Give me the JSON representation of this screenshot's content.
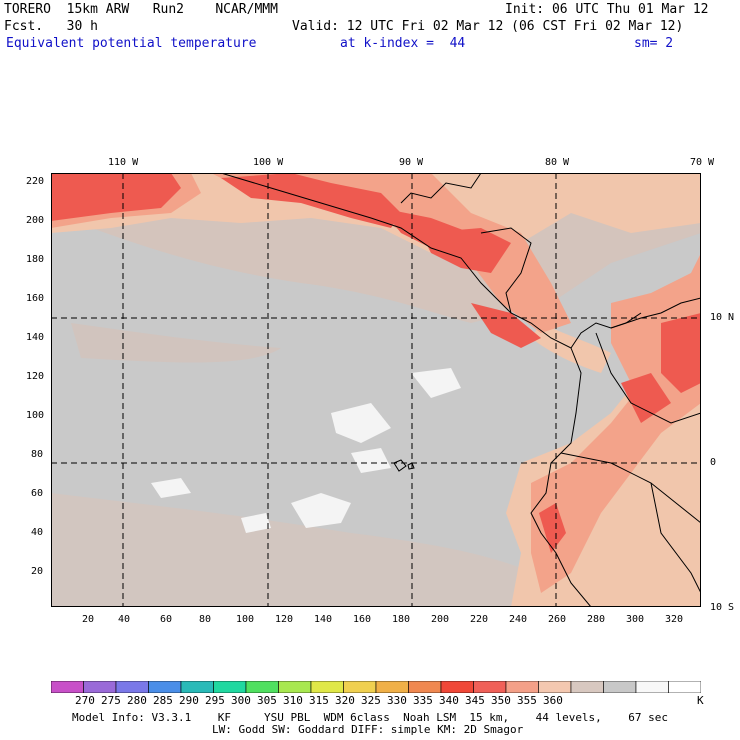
{
  "header": {
    "model": "TORERO  15km ARW   Run2    NCAR/MMM",
    "init": "Init: 06 UTC Thu 01 Mar 12",
    "forecast": "Fcst.   30 h",
    "valid": "Valid: 12 UTC Fri 02 Mar 12 (06 CST Fri 02 Mar 12)",
    "field": "Equivalent potential temperature",
    "level": "at k-index =  44",
    "smoothing": "sm= 2"
  },
  "map": {
    "lon_labels": [
      "110 W",
      "100 W",
      "90 W",
      "80 W",
      "70 W"
    ],
    "lat_labels": [
      "10 N",
      "0",
      "10 S"
    ],
    "y_ticks": [
      "220",
      "200",
      "180",
      "160",
      "140",
      "120",
      "100",
      "80",
      "60",
      "40",
      "20"
    ],
    "x_ticks": [
      "20",
      "40",
      "60",
      "80",
      "100",
      "120",
      "140",
      "160",
      "180",
      "200",
      "220",
      "240",
      "260",
      "280",
      "300",
      "320"
    ]
  },
  "colorbar": {
    "unit": "K",
    "labels": [
      "270",
      "275",
      "280",
      "285",
      "290",
      "295",
      "300",
      "305",
      "310",
      "315",
      "320",
      "325",
      "330",
      "335",
      "340",
      "345",
      "350",
      "355",
      "360"
    ],
    "colors": [
      "#c850c8",
      "#9a6ad8",
      "#7a78e8",
      "#4a8ee8",
      "#2abab8",
      "#20d8a0",
      "#50e060",
      "#a8e850",
      "#e0e848",
      "#f0d050",
      "#f0b048",
      "#f08850",
      "#f04838",
      "#f06058",
      "#f4a088",
      "#f4c8b0",
      "#d8c8c0",
      "#c8c8c8",
      "#f8f8f8",
      "#ffffff"
    ]
  },
  "footer": {
    "line1": "Model Info: V3.3.1    KF     YSU PBL  WDM 6class  Noah LSM  15 km,    44 levels,    67 sec",
    "line2": "LW: Godd SW: Goddard DIFF: simple KM: 2D Smagor"
  }
}
